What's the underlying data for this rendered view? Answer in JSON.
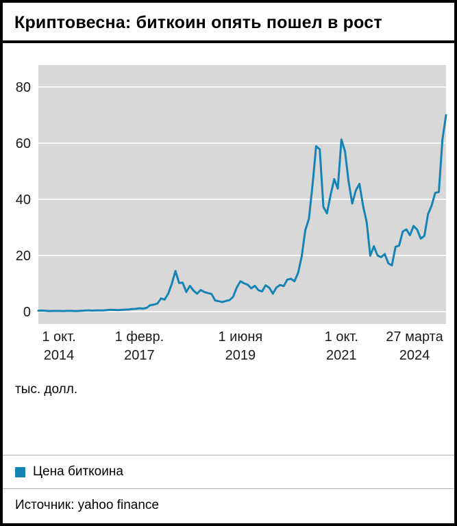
{
  "header": {
    "title": "Криптовесна: биткоин опять пошел в рост"
  },
  "chart_data": {
    "type": "line",
    "title": "Криптовесна: биткоин опять пошел в рост",
    "ylabel": "тыс. долл.",
    "ylim": [
      0,
      80
    ],
    "yticks": [
      0,
      20,
      40,
      60,
      80
    ],
    "x_unit": "months since 2014-10",
    "xmax": 113,
    "xticks": [
      {
        "pos": 0,
        "line1": "1 окт.",
        "line2": "2014"
      },
      {
        "pos": 28,
        "line1": "1 февр.",
        "line2": "2017"
      },
      {
        "pos": 56,
        "line1": "1 июня",
        "line2": "2019"
      },
      {
        "pos": 84,
        "line1": "1 окт.",
        "line2": "2021"
      },
      {
        "pos": 113,
        "line1": "27 марта",
        "line2": "2024"
      }
    ],
    "grid": true,
    "legend_position": "bottom",
    "series": [
      {
        "name": "Цена биткоина",
        "color": "#1583b3",
        "values": [
          0.34,
          0.38,
          0.32,
          0.22,
          0.25,
          0.25,
          0.24,
          0.23,
          0.26,
          0.28,
          0.23,
          0.24,
          0.31,
          0.38,
          0.43,
          0.37,
          0.44,
          0.42,
          0.45,
          0.53,
          0.67,
          0.62,
          0.57,
          0.61,
          0.7,
          0.75,
          0.96,
          0.97,
          1.19,
          1.08,
          1.35,
          2.29,
          2.48,
          2.87,
          4.7,
          4.3,
          6.45,
          9.95,
          14.5,
          10.2,
          10.3,
          7.0,
          9.2,
          7.5,
          6.4,
          7.7,
          7.0,
          6.6,
          6.3,
          4.0,
          3.7,
          3.4,
          3.8,
          4.1,
          5.3,
          8.6,
          10.8,
          10.1,
          9.6,
          8.3,
          9.2,
          7.6,
          7.2,
          9.4,
          8.5,
          6.4,
          8.6,
          9.5,
          9.1,
          11.4,
          11.7,
          10.8,
          13.8,
          19.7,
          29.0,
          33.1,
          45.2,
          58.9,
          57.8,
          37.3,
          35.0,
          41.5,
          47.2,
          43.8,
          61.3,
          57.0,
          46.3,
          38.5,
          43.2,
          45.5,
          37.7,
          31.8,
          19.9,
          23.3,
          20.0,
          19.4,
          20.5,
          17.2,
          16.5,
          23.1,
          23.5,
          28.5,
          29.3,
          27.2,
          30.5,
          29.2,
          26.0,
          27.0,
          34.7,
          37.7,
          42.3,
          42.6,
          61.2,
          70.0
        ]
      }
    ]
  },
  "legend": {
    "label": "Цена биткоина",
    "color": "#1583b3"
  },
  "source": {
    "text": "Источник: yahoo finance"
  },
  "colors": {
    "plot_bg": "#d8d8d8",
    "grid": "#ffffff",
    "line": "#1583b3",
    "separator": "#b0b0b0"
  }
}
